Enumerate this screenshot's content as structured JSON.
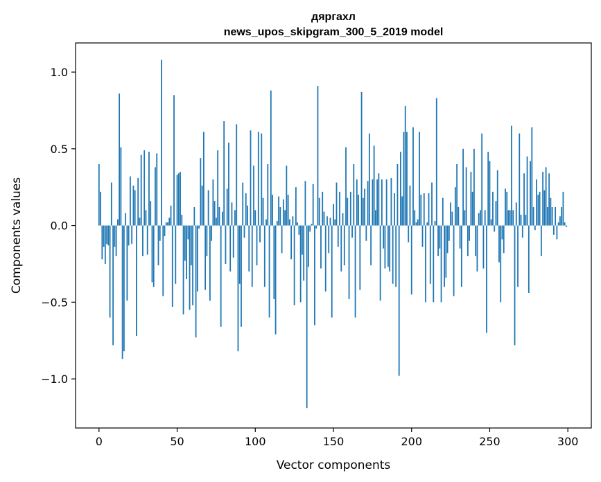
{
  "chart_data": {
    "type": "bar",
    "title": "дяргахл",
    "subtitle": "news_upos_skipgram_300_5_2019 model",
    "xlabel": "Vector components",
    "ylabel": "Components values",
    "xlim": [
      -15,
      315
    ],
    "ylim": [
      -1.32,
      1.19
    ],
    "xticks": [
      0,
      50,
      100,
      150,
      200,
      250,
      300
    ],
    "yticks": [
      -1.0,
      -0.5,
      0.0,
      0.5,
      1.0
    ],
    "ytick_labels": [
      "−1.0",
      "−0.5",
      "0.0",
      "0.5",
      "1.0"
    ],
    "grid": false,
    "bar_color": "#1f77b4",
    "values": [
      0.4,
      0.22,
      -0.22,
      -0.14,
      -0.25,
      -0.12,
      -0.13,
      -0.6,
      0.28,
      -0.78,
      -0.14,
      -0.2,
      0.04,
      0.86,
      0.51,
      -0.87,
      -0.82,
      0.08,
      -0.49,
      -0.13,
      0.32,
      -0.12,
      0.26,
      0.23,
      -0.72,
      0.31,
      0.05,
      0.46,
      -0.2,
      0.49,
      0.1,
      -0.19,
      0.48,
      0.16,
      -0.37,
      -0.4,
      0.38,
      0.47,
      -0.26,
      -0.1,
      1.08,
      -0.46,
      -0.07,
      0.02,
      0.02,
      0.05,
      0.13,
      -0.53,
      0.85,
      -0.38,
      0.33,
      0.34,
      0.35,
      0.07,
      -0.58,
      -0.23,
      -0.35,
      -0.09,
      -0.55,
      -0.26,
      -0.52,
      0.12,
      -0.73,
      -0.43,
      -0.02,
      0.44,
      0.26,
      0.61,
      -0.42,
      -0.2,
      0.23,
      -0.49,
      -0.1,
      0.3,
      0.16,
      0.05,
      0.49,
      0.12,
      -0.66,
      0.09,
      0.68,
      -0.25,
      0.24,
      0.54,
      -0.3,
      0.15,
      -0.21,
      0.1,
      0.66,
      -0.82,
      -0.38,
      -0.66,
      0.28,
      -0.08,
      0.21,
      0.13,
      -0.3,
      0.62,
      -0.4,
      0.39,
      0.1,
      -0.26,
      0.61,
      -0.11,
      0.6,
      0.18,
      -0.4,
      0.04,
      0.4,
      -0.6,
      0.88,
      0.2,
      -0.48,
      -0.71,
      0.03,
      0.19,
      0.12,
      -0.18,
      0.17,
      0.1,
      0.39,
      0.2,
      0.04,
      -0.22,
      0.06,
      -0.52,
      0.25,
      0.02,
      -0.06,
      -0.5,
      -0.19,
      -0.36,
      0.29,
      -1.19,
      -0.27,
      -0.04,
      0.01,
      0.27,
      -0.65,
      -0.02,
      0.91,
      0.18,
      -0.28,
      0.22,
      0.09,
      -0.43,
      0.06,
      -0.18,
      0.05,
      -0.6,
      0.14,
      0.04,
      0.28,
      -0.14,
      0.22,
      -0.3,
      0.08,
      -0.26,
      0.51,
      0.18,
      -0.48,
      0.22,
      -0.08,
      0.4,
      -0.6,
      0.3,
      0.2,
      -0.42,
      0.87,
      0.18,
      0.24,
      -0.1,
      0.29,
      0.6,
      -0.26,
      0.3,
      0.52,
      0.1,
      0.3,
      0.34,
      -0.49,
      0.3,
      -0.15,
      -0.28,
      0.3,
      -0.27,
      -0.3,
      0.31,
      -0.38,
      0.21,
      -0.4,
      0.4,
      -0.98,
      0.48,
      0.19,
      0.61,
      0.78,
      0.61,
      -0.11,
      0.26,
      -0.45,
      0.64,
      0.1,
      0.02,
      0.04,
      0.61,
      0.2,
      -0.14,
      0.21,
      -0.5,
      0.02,
      0.21,
      -0.38,
      0.28,
      -0.5,
      0.03,
      0.83,
      -0.2,
      -0.15,
      -0.5,
      0.18,
      -0.4,
      -0.34,
      -0.18,
      -0.1,
      0.15,
      0.09,
      -0.46,
      0.25,
      0.4,
      0.12,
      -0.15,
      -0.4,
      0.5,
      0.1,
      0.38,
      -0.2,
      -0.1,
      0.35,
      0.22,
      0.5,
      -0.2,
      -0.3,
      0.08,
      0.1,
      0.6,
      -0.28,
      0.1,
      -0.7,
      0.48,
      0.42,
      0.04,
      0.22,
      -0.04,
      0.16,
      0.36,
      -0.24,
      -0.5,
      -0.09,
      -0.18,
      0.24,
      0.22,
      0.1,
      0.1,
      0.65,
      0.1,
      -0.78,
      0.15,
      -0.4,
      0.6,
      0.07,
      -0.08,
      0.34,
      0.07,
      0.45,
      -0.44,
      0.42,
      0.64,
      0.12,
      -0.03,
      0.3,
      0.2,
      0.22,
      -0.2,
      0.35,
      0.23,
      0.38,
      0.12,
      0.34,
      0.18,
      0.12,
      -0.06,
      0.12,
      -0.09,
      0.02,
      0.06,
      0.12,
      0.22,
      0.02,
      -0.01
    ]
  }
}
